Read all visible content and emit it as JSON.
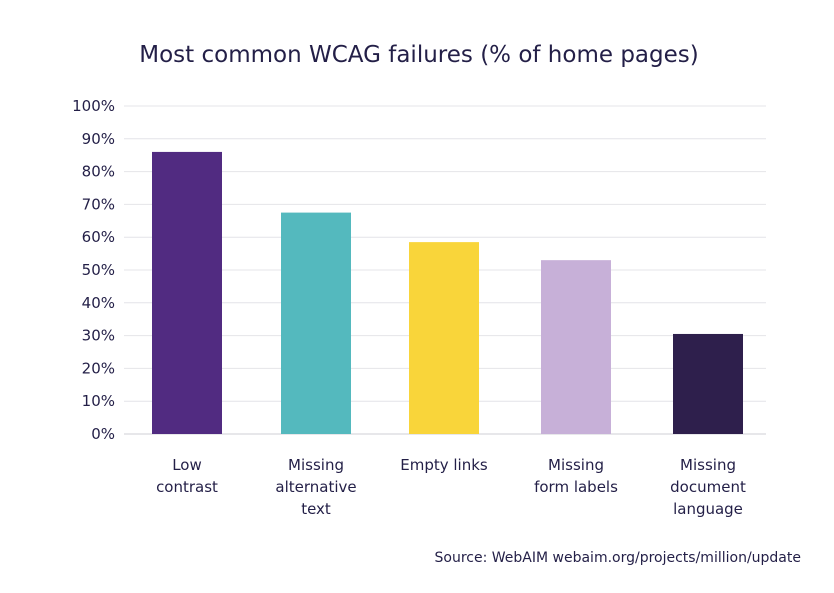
{
  "chart_data": {
    "type": "bar",
    "title": "Most common WCAG failures (% of home pages)",
    "xlabel": "",
    "ylabel": "",
    "ylim": [
      0,
      100
    ],
    "yticks": [
      "0%",
      "10%",
      "20%",
      "30%",
      "40%",
      "50%",
      "60%",
      "70%",
      "80%",
      "90%",
      "100%"
    ],
    "categories": [
      [
        "Low",
        "contrast"
      ],
      [
        "Missing",
        "alternative",
        "text"
      ],
      [
        "Empty links"
      ],
      [
        "Missing",
        "form labels"
      ],
      [
        "Missing",
        "document",
        "language"
      ]
    ],
    "values": [
      86,
      67.5,
      58.5,
      53,
      30.5
    ],
    "colors": [
      "#512b81",
      "#54b9be",
      "#f9d53a",
      "#c7b0d8",
      "#2e1f4c"
    ],
    "grid": true,
    "legend": "none",
    "source": "Source: WebAIM webaim.org/projects/million/update"
  }
}
